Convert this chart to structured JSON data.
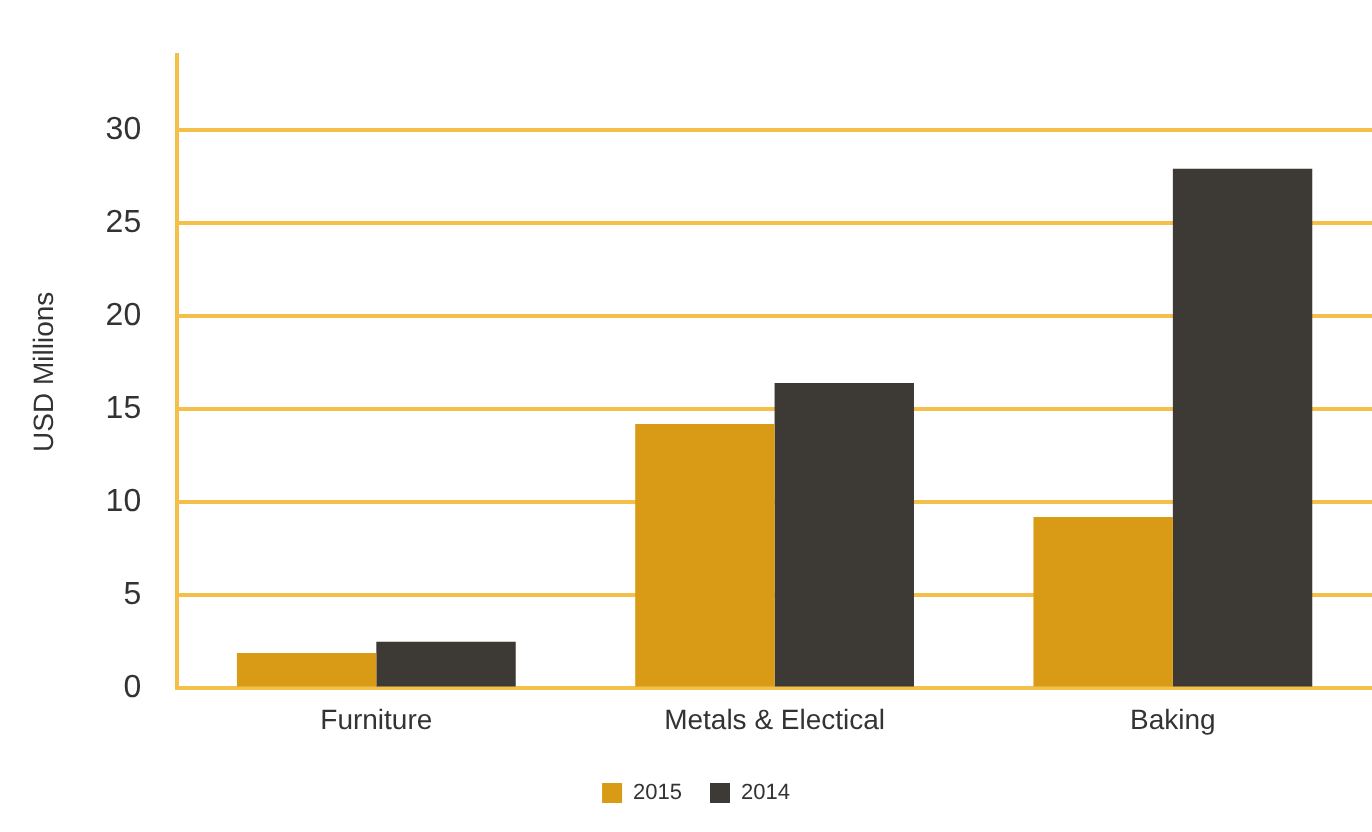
{
  "chart_data": {
    "type": "bar",
    "ylabel": "USD Millions",
    "categories": [
      "Furniture",
      "Metals & Electical",
      "Baking"
    ],
    "series": [
      {
        "name": "2015",
        "color": "#d99a16",
        "values": [
          1.9,
          14.2,
          9.2
        ]
      },
      {
        "name": "2014",
        "color": "#3d3935",
        "values": [
          2.5,
          16.4,
          27.9
        ]
      }
    ],
    "ylim": [
      0,
      34
    ],
    "yticks": [
      0,
      5,
      10,
      15,
      20,
      25,
      30
    ],
    "grid": "y",
    "legend": "bottom"
  }
}
